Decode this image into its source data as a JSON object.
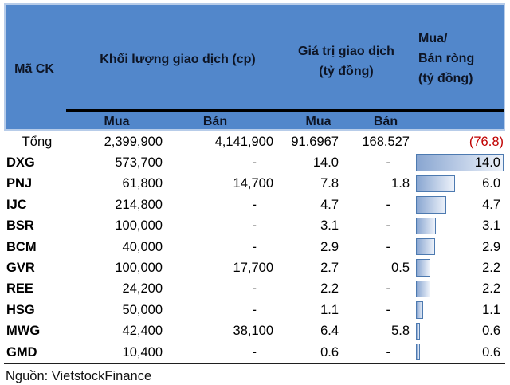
{
  "table": {
    "header": {
      "ma_ck": "Mã CK",
      "volume_group": "Khối lượng giao dịch (cp)",
      "value_group_line1": "Giá trị giao dịch",
      "value_group_line2": "(tỷ đồng)",
      "net_group_line1": "Mua/",
      "net_group_line2": "Bán ròng",
      "net_group_line3": "(tỷ đồng)",
      "sub_volume_buy": "Mua",
      "sub_volume_sell": "Bán",
      "sub_value_buy": "Mua",
      "sub_value_sell": "Bán"
    },
    "rows": [
      {
        "code": "Tổng",
        "vol_buy": "2,399,900",
        "vol_sell": "4,141,900",
        "val_buy": "91.6967",
        "val_sell": "168.527",
        "net": "(76.8)",
        "net_value": -76.8,
        "is_total": true
      },
      {
        "code": "DXG",
        "vol_buy": "573,700",
        "vol_sell": "-",
        "val_buy": "14.0",
        "val_sell": "-",
        "net": "14.0",
        "net_value": 14.0
      },
      {
        "code": "PNJ",
        "vol_buy": "61,800",
        "vol_sell": "14,700",
        "val_buy": "7.8",
        "val_sell": "1.8",
        "net": "6.0",
        "net_value": 6.0
      },
      {
        "code": "IJC",
        "vol_buy": "214,800",
        "vol_sell": "-",
        "val_buy": "4.7",
        "val_sell": "-",
        "net": "4.7",
        "net_value": 4.7
      },
      {
        "code": "BSR",
        "vol_buy": "100,000",
        "vol_sell": "-",
        "val_buy": "3.1",
        "val_sell": "-",
        "net": "3.1",
        "net_value": 3.1
      },
      {
        "code": "BCM",
        "vol_buy": "40,000",
        "vol_sell": "-",
        "val_buy": "2.9",
        "val_sell": "-",
        "net": "2.9",
        "net_value": 2.9
      },
      {
        "code": "GVR",
        "vol_buy": "100,000",
        "vol_sell": "17,700",
        "val_buy": "2.7",
        "val_sell": "0.5",
        "net": "2.2",
        "net_value": 2.2
      },
      {
        "code": "REE",
        "vol_buy": "24,200",
        "vol_sell": "-",
        "val_buy": "2.2",
        "val_sell": "-",
        "net": "2.2",
        "net_value": 2.2
      },
      {
        "code": "HSG",
        "vol_buy": "50,000",
        "vol_sell": "-",
        "val_buy": "1.1",
        "val_sell": "-",
        "net": "1.1",
        "net_value": 1.1
      },
      {
        "code": "MWG",
        "vol_buy": "42,400",
        "vol_sell": "38,100",
        "val_buy": "6.4",
        "val_sell": "5.8",
        "net": "0.6",
        "net_value": 0.6
      },
      {
        "code": "GMD",
        "vol_buy": "10,400",
        "vol_sell": "-",
        "val_buy": "0.6",
        "val_sell": "-",
        "net": "0.6",
        "net_value": 0.6
      }
    ]
  },
  "footer": {
    "source": "Nguồn: VietstockFinance"
  },
  "colors": {
    "header_bg": "#5287cb",
    "header_text": "#0d1424",
    "header_border": "#b7cce9",
    "text": "#000000",
    "negative": "#c00000",
    "bar_from": "#89a6d1",
    "bar_to": "#edf2fa",
    "bar_border": "#4d7ab0",
    "rule": "#000000"
  },
  "chart_data": {
    "type": "table",
    "columns": [
      "Mã CK",
      "Khối lượng giao dịch Mua (cp)",
      "Khối lượng giao dịch Bán (cp)",
      "Giá trị giao dịch Mua (tỷ đồng)",
      "Giá trị giao dịch Bán (tỷ đồng)",
      "Mua/Bán ròng (tỷ đồng)"
    ],
    "rows": [
      [
        "Tổng",
        2399900,
        4141900,
        91.6967,
        168.527,
        -76.8
      ],
      [
        "DXG",
        573700,
        null,
        14.0,
        null,
        14.0
      ],
      [
        "PNJ",
        61800,
        14700,
        7.8,
        1.8,
        6.0
      ],
      [
        "IJC",
        214800,
        null,
        4.7,
        null,
        4.7
      ],
      [
        "BSR",
        100000,
        null,
        3.1,
        null,
        3.1
      ],
      [
        "BCM",
        40000,
        null,
        2.9,
        null,
        2.9
      ],
      [
        "GVR",
        100000,
        17700,
        2.7,
        0.5,
        2.2
      ],
      [
        "REE",
        24200,
        null,
        2.2,
        null,
        2.2
      ],
      [
        "HSG",
        50000,
        null,
        1.1,
        null,
        1.1
      ],
      [
        "MWG",
        42400,
        38100,
        6.4,
        5.8,
        0.6
      ],
      [
        "GMD",
        10400,
        null,
        0.6,
        null,
        0.6
      ]
    ],
    "embedded_bar_column": "Mua/Bán ròng (tỷ đồng)",
    "bar_max": 14.0,
    "bar_type": "horizontal-data-bar",
    "source": "Nguồn: VietstockFinance"
  }
}
